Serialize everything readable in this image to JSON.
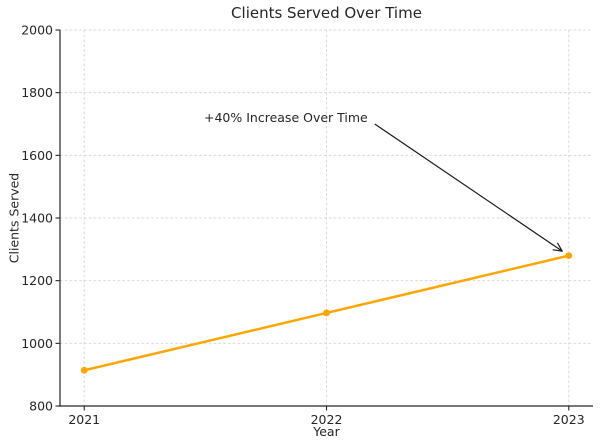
{
  "chart_data": {
    "type": "line",
    "title": "Clients Served Over Time",
    "xlabel": "Year",
    "ylabel": "Clients Served",
    "categories": [
      "2021",
      "2022",
      "2023"
    ],
    "x": [
      2021,
      2022,
      2023
    ],
    "values": [
      914,
      1097,
      1280
    ],
    "ylim": [
      800,
      2000
    ],
    "xlim": [
      2020.9,
      2023.1
    ],
    "yticks": [
      800,
      1000,
      1200,
      1400,
      1600,
      1800,
      2000
    ],
    "grid": true,
    "grid_style": "dashed",
    "legend": "none",
    "line_color": "#FFA500",
    "marker": "circle",
    "axis_color": "#262626",
    "grid_color": "#d9d9d9",
    "annotation": {
      "text": "+40% Increase Over Time",
      "xy": [
        2023,
        1280
      ],
      "xytext": [
        2021.5,
        1700
      ],
      "arrow_color": "#1a1a1a"
    }
  }
}
